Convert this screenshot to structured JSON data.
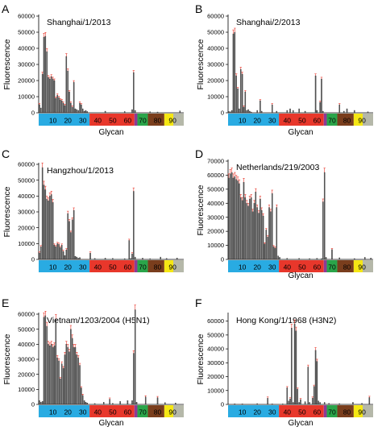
{
  "figure": {
    "panel_letters": [
      "A",
      "B",
      "C",
      "D",
      "E",
      "F"
    ]
  },
  "chart_data": [
    {
      "panel": "A",
      "type": "bar",
      "title": "Shanghai/1/2013",
      "xlabel": "Glycan",
      "ylabel": "Fluorescence",
      "ylim": [
        0,
        60000
      ],
      "yticks": [
        0,
        10000,
        20000,
        30000,
        40000,
        50000,
        60000
      ],
      "xlim": [
        1,
        97
      ],
      "xticks": [
        10,
        20,
        30,
        40,
        50,
        60,
        70,
        80,
        90
      ],
      "grid": false,
      "bars": [
        [
          1,
          5000
        ],
        [
          2,
          3000
        ],
        [
          3,
          24000
        ],
        [
          4,
          47000
        ],
        [
          5,
          47500
        ],
        [
          6,
          38000
        ],
        [
          7,
          22000
        ],
        [
          8,
          21000
        ],
        [
          9,
          22500
        ],
        [
          10,
          21000
        ],
        [
          11,
          20000
        ],
        [
          12,
          9000
        ],
        [
          13,
          11000
        ],
        [
          14,
          9500
        ],
        [
          15,
          8000
        ],
        [
          16,
          7500
        ],
        [
          17,
          6000
        ],
        [
          18,
          4500
        ],
        [
          19,
          35000
        ],
        [
          20,
          26000
        ],
        [
          21,
          13000
        ],
        [
          22,
          6000
        ],
        [
          23,
          3500
        ],
        [
          24,
          19000
        ],
        [
          25,
          2500
        ],
        [
          26,
          2000
        ],
        [
          27,
          1500
        ],
        [
          28,
          6000
        ],
        [
          29,
          5000
        ],
        [
          30,
          2500
        ],
        [
          31,
          1000
        ],
        [
          32,
          1500
        ],
        [
          33,
          800
        ],
        [
          45,
          1000
        ],
        [
          58,
          800
        ],
        [
          63,
          2000
        ],
        [
          64,
          25000
        ],
        [
          65,
          1500
        ],
        [
          75,
          700
        ],
        [
          80,
          500
        ],
        [
          95,
          1200
        ]
      ]
    },
    {
      "panel": "B",
      "type": "bar",
      "title": "Shanghai/2/2013",
      "xlabel": "Glycan",
      "ylabel": "Fluorescence",
      "ylim": [
        0,
        60000
      ],
      "yticks": [
        0,
        10000,
        20000,
        30000,
        40000,
        50000,
        60000
      ],
      "xlim": [
        1,
        97
      ],
      "xticks": [
        10,
        20,
        30,
        40,
        50,
        60,
        70,
        80,
        90
      ],
      "grid": false,
      "bars": [
        [
          1,
          800
        ],
        [
          2,
          600
        ],
        [
          3,
          1500
        ],
        [
          4,
          49000
        ],
        [
          5,
          50000
        ],
        [
          6,
          23000
        ],
        [
          7,
          15000
        ],
        [
          8,
          2500
        ],
        [
          9,
          27000
        ],
        [
          10,
          24000
        ],
        [
          11,
          3500
        ],
        [
          12,
          13000
        ],
        [
          13,
          1500
        ],
        [
          14,
          2000
        ],
        [
          15,
          1000
        ],
        [
          16,
          500
        ],
        [
          20,
          1500
        ],
        [
          22,
          7500
        ],
        [
          23,
          1000
        ],
        [
          30,
          5000
        ],
        [
          33,
          1000
        ],
        [
          40,
          1500
        ],
        [
          42,
          2500
        ],
        [
          44,
          1500
        ],
        [
          48,
          2500
        ],
        [
          52,
          1000
        ],
        [
          59,
          23000
        ],
        [
          60,
          1500
        ],
        [
          62,
          6500
        ],
        [
          63,
          21000
        ],
        [
          64,
          1000
        ],
        [
          75,
          5000
        ],
        [
          78,
          1000
        ],
        [
          80,
          2500
        ],
        [
          85,
          1500
        ],
        [
          94,
          600
        ]
      ]
    },
    {
      "panel": "C",
      "type": "bar",
      "title": "Hangzhou/1/2013",
      "xlabel": "",
      "ylabel": "Fluorescence",
      "ylim": [
        0,
        60000
      ],
      "yticks": [
        0,
        10000,
        20000,
        30000,
        40000,
        50000,
        60000
      ],
      "xlim": [
        1,
        97
      ],
      "xticks": [
        10,
        20,
        30,
        40,
        50,
        60,
        70,
        80,
        90
      ],
      "grid": false,
      "bars": [
        [
          1,
          4000
        ],
        [
          2,
          8000
        ],
        [
          3,
          58000
        ],
        [
          4,
          47000
        ],
        [
          5,
          44000
        ],
        [
          6,
          38000
        ],
        [
          7,
          37000
        ],
        [
          8,
          40000
        ],
        [
          9,
          41000
        ],
        [
          10,
          36000
        ],
        [
          11,
          9000
        ],
        [
          12,
          8000
        ],
        [
          13,
          10000
        ],
        [
          14,
          9500
        ],
        [
          15,
          7500
        ],
        [
          16,
          9000
        ],
        [
          17,
          5000
        ],
        [
          18,
          2500
        ],
        [
          19,
          6000
        ],
        [
          20,
          29000
        ],
        [
          21,
          24000
        ],
        [
          22,
          17000
        ],
        [
          23,
          25000
        ],
        [
          24,
          31000
        ],
        [
          25,
          2000
        ],
        [
          26,
          1500
        ],
        [
          27,
          800
        ],
        [
          28,
          1200
        ],
        [
          35,
          4000
        ],
        [
          38,
          600
        ],
        [
          45,
          800
        ],
        [
          50,
          600
        ],
        [
          58,
          500
        ],
        [
          61,
          12000
        ],
        [
          62,
          600
        ],
        [
          63,
          3500
        ],
        [
          64,
          43000
        ],
        [
          65,
          1500
        ],
        [
          70,
          800
        ],
        [
          75,
          500
        ],
        [
          82,
          1500
        ],
        [
          86,
          600
        ],
        [
          93,
          900
        ]
      ]
    },
    {
      "panel": "D",
      "type": "bar",
      "title": "Netherlands/219/2003",
      "xlabel": "Glycan",
      "ylabel": "Fluorescence",
      "ylim": [
        0,
        70000
      ],
      "yticks": [
        0,
        10000,
        20000,
        30000,
        40000,
        50000,
        60000,
        70000
      ],
      "xlim": [
        1,
        97
      ],
      "xticks": [
        10,
        20,
        30,
        40,
        50,
        60,
        70,
        80,
        90
      ],
      "grid": false,
      "bars": [
        [
          1,
          58000
        ],
        [
          2,
          61000
        ],
        [
          3,
          62000
        ],
        [
          4,
          58000
        ],
        [
          5,
          59000
        ],
        [
          6,
          57000
        ],
        [
          7,
          56000
        ],
        [
          8,
          54000
        ],
        [
          9,
          44000
        ],
        [
          10,
          42000
        ],
        [
          11,
          55000
        ],
        [
          12,
          44000
        ],
        [
          13,
          40000
        ],
        [
          14,
          38000
        ],
        [
          15,
          43000
        ],
        [
          16,
          44000
        ],
        [
          17,
          34000
        ],
        [
          18,
          40000
        ],
        [
          19,
          48000
        ],
        [
          20,
          37000
        ],
        [
          21,
          33000
        ],
        [
          22,
          43000
        ],
        [
          23,
          35000
        ],
        [
          24,
          31000
        ],
        [
          25,
          11000
        ],
        [
          26,
          21000
        ],
        [
          27,
          16000
        ],
        [
          28,
          37000
        ],
        [
          29,
          34000
        ],
        [
          30,
          47000
        ],
        [
          31,
          9000
        ],
        [
          32,
          8000
        ],
        [
          33,
          37000
        ],
        [
          34,
          2500
        ],
        [
          35,
          1500
        ],
        [
          40,
          800
        ],
        [
          48,
          700
        ],
        [
          55,
          600
        ],
        [
          60,
          800
        ],
        [
          63,
          600
        ],
        [
          64,
          41000
        ],
        [
          65,
          62000
        ],
        [
          66,
          1500
        ],
        [
          70,
          7000
        ],
        [
          75,
          1200
        ],
        [
          85,
          600
        ],
        [
          92,
          1500
        ],
        [
          96,
          1000
        ]
      ]
    },
    {
      "panel": "E",
      "type": "bar",
      "title": "Vietnam/1203/2004 (H5N1)",
      "xlabel": "Glycan",
      "ylabel": "Fluorescence",
      "ylim": [
        0,
        60000
      ],
      "yticks": [
        0,
        10000,
        20000,
        30000,
        40000,
        50000,
        60000
      ],
      "xlim": [
        1,
        97
      ],
      "xticks": [
        10,
        20,
        30,
        40,
        50,
        60,
        70,
        80,
        90
      ],
      "grid": false,
      "bars": [
        [
          1,
          2500
        ],
        [
          2,
          1500
        ],
        [
          3,
          2000
        ],
        [
          4,
          58000
        ],
        [
          5,
          59000
        ],
        [
          6,
          52000
        ],
        [
          7,
          40000
        ],
        [
          8,
          39000
        ],
        [
          9,
          40000
        ],
        [
          10,
          38000
        ],
        [
          11,
          39000
        ],
        [
          12,
          57000
        ],
        [
          13,
          31000
        ],
        [
          14,
          29000
        ],
        [
          15,
          17000
        ],
        [
          16,
          27000
        ],
        [
          17,
          24000
        ],
        [
          18,
          33000
        ],
        [
          19,
          40000
        ],
        [
          20,
          38000
        ],
        [
          21,
          35000
        ],
        [
          22,
          50000
        ],
        [
          23,
          44000
        ],
        [
          24,
          38000
        ],
        [
          25,
          38000
        ],
        [
          26,
          33000
        ],
        [
          27,
          31000
        ],
        [
          28,
          26000
        ],
        [
          29,
          11000
        ],
        [
          30,
          6000
        ],
        [
          31,
          2500
        ],
        [
          32,
          1500
        ],
        [
          33,
          1000
        ],
        [
          38,
          600
        ],
        [
          44,
          1500
        ],
        [
          48,
          3500
        ],
        [
          50,
          700
        ],
        [
          55,
          2000
        ],
        [
          60,
          2500
        ],
        [
          63,
          2500
        ],
        [
          64,
          34000
        ],
        [
          65,
          63000
        ],
        [
          66,
          1500
        ],
        [
          72,
          5000
        ],
        [
          80,
          4500
        ],
        [
          85,
          1200
        ],
        [
          92,
          1000
        ]
      ]
    },
    {
      "panel": "F",
      "type": "bar",
      "title": "Hong Kong/1/1968 (H3N2)",
      "xlabel": "Glycan",
      "ylabel": "Fluorescence",
      "ylim": [
        0,
        65000
      ],
      "yticks": [
        0,
        10000,
        20000,
        30000,
        40000,
        50000,
        60000
      ],
      "xlim": [
        1,
        97
      ],
      "xticks": [
        10,
        20,
        30,
        40,
        50,
        60,
        70,
        80,
        90
      ],
      "grid": false,
      "bars": [
        [
          5,
          500
        ],
        [
          10,
          400
        ],
        [
          20,
          600
        ],
        [
          27,
          4500
        ],
        [
          30,
          400
        ],
        [
          37,
          400
        ],
        [
          40,
          12000
        ],
        [
          41,
          2500
        ],
        [
          42,
          4000
        ],
        [
          43,
          55000
        ],
        [
          44,
          1500
        ],
        [
          45,
          58000
        ],
        [
          46,
          53000
        ],
        [
          47,
          11000
        ],
        [
          48,
          1500
        ],
        [
          49,
          3500
        ],
        [
          52,
          2000
        ],
        [
          54,
          27000
        ],
        [
          55,
          1500
        ],
        [
          57,
          4500
        ],
        [
          58,
          13000
        ],
        [
          59,
          39000
        ],
        [
          60,
          31000
        ],
        [
          61,
          2500
        ],
        [
          62,
          1500
        ],
        [
          65,
          1500
        ],
        [
          68,
          800
        ],
        [
          75,
          600
        ],
        [
          84,
          1500
        ],
        [
          90,
          800
        ],
        [
          95,
          5000
        ]
      ]
    }
  ],
  "glycan_bands": {
    "colors": [
      "#29abe2",
      "#e8372b",
      "#8d3a97",
      "#2aa54a",
      "#7a3e1d",
      "#f5e714",
      "#b5b8a9"
    ],
    "ranges": [
      [
        1,
        34
      ],
      [
        35,
        64
      ],
      [
        65,
        66
      ],
      [
        67,
        73
      ],
      [
        74,
        84
      ],
      [
        85,
        90
      ],
      [
        91,
        97
      ]
    ]
  }
}
